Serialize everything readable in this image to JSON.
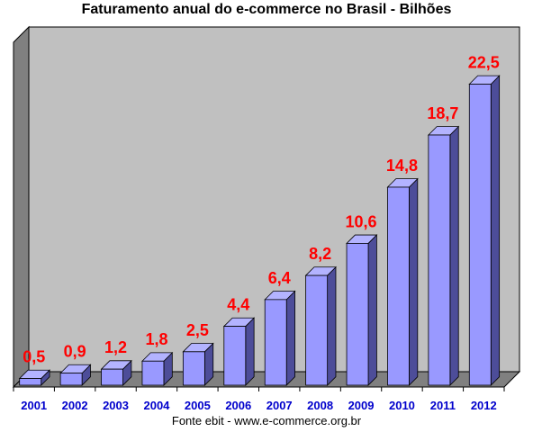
{
  "chart_data": {
    "type": "bar",
    "title": "Faturamento anual do e-commerce no Brasil - Bilhões",
    "categories": [
      "2001",
      "2002",
      "2003",
      "2004",
      "2005",
      "2006",
      "2007",
      "2008",
      "2009",
      "2010",
      "2011",
      "2012"
    ],
    "values": [
      0.5,
      0.9,
      1.2,
      1.8,
      2.5,
      4.4,
      6.4,
      8.2,
      10.6,
      14.8,
      18.7,
      22.5
    ],
    "data_labels": [
      "0,5",
      "0,9",
      "1,2",
      "1,8",
      "2,5",
      "4,4",
      "6,4",
      "8,2",
      "10,6",
      "14,8",
      "18,7",
      "22,5"
    ],
    "ylim": [
      0,
      25
    ],
    "grid": false,
    "legend": "none",
    "source": "Fonte ebit -  www.e-commerce.org.br",
    "colors": {
      "bar_front": "#9999ff",
      "bar_side": "#4d4d99",
      "bar_top": "#b3b3ff",
      "wall": "#c0c0c0",
      "wall_side": "#808080",
      "floor": "#808080",
      "data_label": "#ff0000",
      "tick_label": "#0000cc"
    }
  }
}
